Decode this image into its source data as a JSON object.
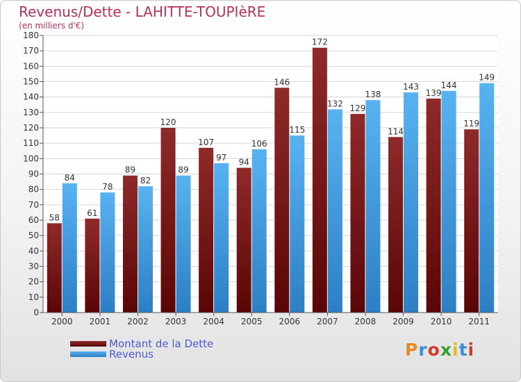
{
  "title": "Revenus/Dette - LAHITTE-TOUPIèRE",
  "subtitle": "(en milliers d'€)",
  "chart_data": {
    "type": "bar",
    "categories": [
      "2000",
      "2001",
      "2002",
      "2003",
      "2004",
      "2005",
      "2006",
      "2007",
      "2008",
      "2009",
      "2010",
      "2011"
    ],
    "series": [
      {
        "name": "Montant de la Dette",
        "color": "#7a1a1a",
        "values": [
          58,
          61,
          89,
          120,
          107,
          94,
          146,
          172,
          129,
          114,
          139,
          119
        ]
      },
      {
        "name": "Revenus",
        "color": "#3b9be0",
        "values": [
          84,
          78,
          82,
          89,
          97,
          106,
          115,
          132,
          138,
          143,
          144,
          149
        ]
      }
    ],
    "yticks": [
      0,
      10,
      20,
      30,
      40,
      50,
      60,
      70,
      80,
      90,
      100,
      110,
      120,
      130,
      140,
      150,
      160,
      170,
      180
    ],
    "ylim": [
      0,
      180
    ],
    "grid": true,
    "legend_position": "bottom-left"
  },
  "legend": {
    "items": [
      {
        "label": "Montant de la Dette",
        "color": "#7a1a1a"
      },
      {
        "label": "Revenus",
        "color": "#3b9be0"
      }
    ]
  },
  "logo": {
    "letters": [
      {
        "ch": "P",
        "color": "#e88a1c"
      },
      {
        "ch": "r",
        "color": "#3a8fd8"
      },
      {
        "ch": "o",
        "color": "#d23a2a"
      },
      {
        "ch": "x",
        "color": "#3aa02a"
      },
      {
        "ch": "i",
        "color": "#e8b81c"
      },
      {
        "ch": "t",
        "color": "#3a8fd8"
      },
      {
        "ch": "i",
        "color": "#d23a2a"
      }
    ]
  }
}
